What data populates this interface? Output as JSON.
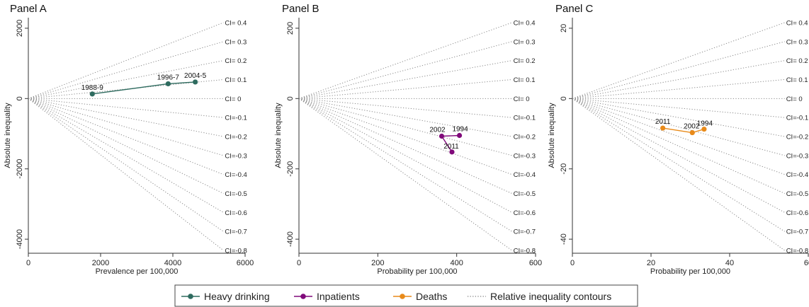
{
  "chart_data": [
    {
      "type": "line",
      "title": "Panel A",
      "xlabel": "Prevalence per 100,000",
      "ylabel": "Absolute inequality",
      "xlim": [
        0,
        6000
      ],
      "ylim": [
        -4400,
        2300
      ],
      "xticks": [
        0,
        2000,
        4000,
        6000
      ],
      "xtick_labels": [
        "0",
        "2000",
        "4000",
        "6000"
      ],
      "yticks": [
        -4000,
        -2000,
        0,
        2000
      ],
      "ytick_labels": [
        "-4000",
        "-2000",
        "0",
        "2000"
      ],
      "contour_x_max": 5400,
      "contours": [
        {
          "ci": 0.4,
          "label": "CI= 0.4"
        },
        {
          "ci": 0.3,
          "label": "CI= 0.3"
        },
        {
          "ci": 0.2,
          "label": "CI= 0.2"
        },
        {
          "ci": 0.1,
          "label": "CI= 0.1"
        },
        {
          "ci": 0,
          "label": "CI= 0"
        },
        {
          "ci": -0.1,
          "label": "CI=-0.1"
        },
        {
          "ci": -0.2,
          "label": "CI=-0.2"
        },
        {
          "ci": -0.3,
          "label": "CI=-0.3"
        },
        {
          "ci": -0.4,
          "label": "CI=-0.4"
        },
        {
          "ci": -0.5,
          "label": "CI=-0.5"
        },
        {
          "ci": -0.6,
          "label": "CI=-0.6"
        },
        {
          "ci": -0.7,
          "label": "CI=-0.7"
        },
        {
          "ci": -0.8,
          "label": "CI=-0.8"
        }
      ],
      "series": [
        {
          "name": "Heavy drinking",
          "color": "#2e6b5f",
          "points": [
            {
              "x": 1770,
              "y": 130,
              "label": "1988-9"
            },
            {
              "x": 3870,
              "y": 420,
              "label": "1996-7"
            },
            {
              "x": 4620,
              "y": 470,
              "label": "2004-5"
            }
          ]
        }
      ]
    },
    {
      "type": "line",
      "title": "Panel B",
      "xlabel": "Probability per 100,000",
      "ylabel": "Absolute inequality",
      "xlim": [
        0,
        600
      ],
      "ylim": [
        -440,
        230
      ],
      "xticks": [
        0,
        200,
        400,
        600
      ],
      "xtick_labels": [
        "0",
        "200",
        "400",
        "600"
      ],
      "yticks": [
        -400,
        -200,
        0,
        200
      ],
      "ytick_labels": [
        "-400",
        "-200",
        "0",
        "200"
      ],
      "contour_x_max": 540,
      "contours": [
        {
          "ci": 0.4,
          "label": "CI= 0.4"
        },
        {
          "ci": 0.3,
          "label": "CI= 0.3"
        },
        {
          "ci": 0.2,
          "label": "CI= 0.2"
        },
        {
          "ci": 0.1,
          "label": "CI= 0.1"
        },
        {
          "ci": 0,
          "label": "CI= 0"
        },
        {
          "ci": -0.1,
          "label": "CI=-0.1"
        },
        {
          "ci": -0.2,
          "label": "CI=-0.2"
        },
        {
          "ci": -0.3,
          "label": "CI=-0.3"
        },
        {
          "ci": -0.4,
          "label": "CI=-0.4"
        },
        {
          "ci": -0.5,
          "label": "CI=-0.5"
        },
        {
          "ci": -0.6,
          "label": "CI=-0.6"
        },
        {
          "ci": -0.7,
          "label": "CI=-0.7"
        },
        {
          "ci": -0.8,
          "label": "CI=-0.8"
        }
      ],
      "series": [
        {
          "name": "Inpatients",
          "color": "#800a7a",
          "points": [
            {
              "x": 407,
              "y": -105,
              "label": "1994"
            },
            {
              "x": 362,
              "y": -107,
              "label": "2002"
            },
            {
              "x": 388,
              "y": -152,
              "label": "2011"
            }
          ]
        }
      ]
    },
    {
      "type": "line",
      "title": "Panel C",
      "xlabel": "Probability per 100,000",
      "ylabel": "Absolute inequality",
      "xlim": [
        0,
        60
      ],
      "ylim": [
        -44,
        23
      ],
      "xticks": [
        0,
        20,
        40,
        60
      ],
      "xtick_labels": [
        "0",
        "20",
        "40",
        "60"
      ],
      "yticks": [
        -40,
        -20,
        0,
        20
      ],
      "ytick_labels": [
        "-40",
        "-20",
        "0",
        "20"
      ],
      "contour_x_max": 54,
      "contours": [
        {
          "ci": 0.4,
          "label": "CI= 0.4"
        },
        {
          "ci": 0.3,
          "label": "CI= 0.3"
        },
        {
          "ci": 0.2,
          "label": "CI= 0.2"
        },
        {
          "ci": 0.1,
          "label": "CI= 0.1"
        },
        {
          "ci": 0,
          "label": "CI= 0"
        },
        {
          "ci": -0.1,
          "label": "CI=-0.1"
        },
        {
          "ci": -0.2,
          "label": "CI=-0.2"
        },
        {
          "ci": -0.3,
          "label": "CI=-0.3"
        },
        {
          "ci": -0.4,
          "label": "CI=-0.4"
        },
        {
          "ci": -0.5,
          "label": "CI=-0.5"
        },
        {
          "ci": -0.6,
          "label": "CI=-0.6"
        },
        {
          "ci": -0.7,
          "label": "CI=-0.7"
        },
        {
          "ci": -0.8,
          "label": "CI=-0.8"
        }
      ],
      "series": [
        {
          "name": "Deaths",
          "color": "#e88a1a",
          "points": [
            {
              "x": 33.5,
              "y": -8.7,
              "label": "1994"
            },
            {
              "x": 30.5,
              "y": -9.7,
              "label": "2002"
            },
            {
              "x": 23,
              "y": -8.4,
              "label": "2011"
            }
          ]
        }
      ]
    }
  ],
  "legend": {
    "position": "bottom-center",
    "items": [
      {
        "label": "Heavy drinking",
        "color": "#2e6b5f",
        "kind": "line-marker"
      },
      {
        "label": "Inpatients",
        "color": "#800a7a",
        "kind": "line-marker"
      },
      {
        "label": "Deaths",
        "color": "#e88a1a",
        "kind": "line-marker"
      },
      {
        "label": "Relative inequality contours",
        "color": "#7a7a7a",
        "kind": "dotted-line"
      }
    ]
  },
  "colors": {
    "axis": "#333333",
    "contour": "#8a8a8a"
  }
}
